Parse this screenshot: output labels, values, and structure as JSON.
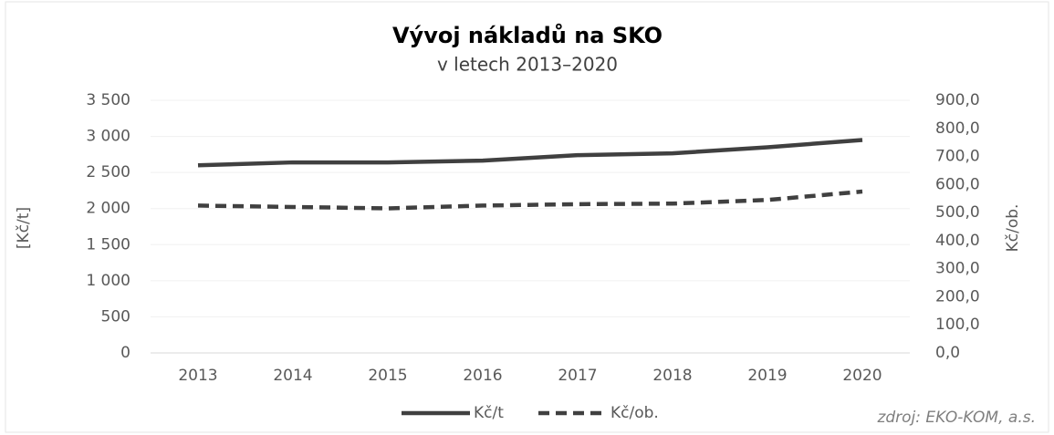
{
  "chart_data": {
    "type": "line",
    "title": "Vývoj nákladů na SKO",
    "subtitle": "v letech 2013–2020",
    "y_label": "[Kč/t]",
    "y2_label": "Kč/ob.",
    "source": "zdroj: EKO-KOM, a.s.",
    "categories": [
      "2013",
      "2014",
      "2015",
      "2016",
      "2017",
      "2018",
      "2019",
      "2020"
    ],
    "series": [
      {
        "name": "Kč/t",
        "color": "#404040",
        "dash": "solid",
        "values": [
          2600,
          2640,
          2640,
          2665,
          2740,
          2765,
          2850,
          2950
        ]
      },
      {
        "name": "Kč/ob.",
        "color": "#404040",
        "dash": "dashed",
        "axis": "y2",
        "values": [
          525,
          520,
          515,
          525,
          530,
          532,
          545,
          575
        ]
      }
    ],
    "ylim": [
      0,
      3500
    ],
    "yticks": [
      0,
      500,
      {
        "value": 1000,
        "label": "1 000"
      },
      {
        "value": 1500,
        "label": "1 500"
      },
      {
        "value": 2000,
        "label": "2 000"
      },
      {
        "value": 2500,
        "label": "2 500"
      },
      {
        "value": 3000,
        "label": "3 000"
      },
      {
        "value": 3500,
        "label": "3 500"
      }
    ],
    "y2lim": [
      0,
      900
    ],
    "y2ticks": [
      {
        "value": 0,
        "label": "0,0"
      },
      {
        "value": 100,
        "label": "100,0"
      },
      {
        "value": 200,
        "label": "200,0"
      },
      {
        "value": 300,
        "label": "300,0"
      },
      {
        "value": 400,
        "label": "400,0"
      },
      {
        "value": 500,
        "label": "500,0"
      },
      {
        "value": 600,
        "label": "600,0"
      },
      {
        "value": 700,
        "label": "700,0"
      },
      {
        "value": 800,
        "label": "800,0"
      },
      {
        "value": 900,
        "label": "900,0"
      }
    ],
    "grid": true,
    "legend": "bottom"
  }
}
